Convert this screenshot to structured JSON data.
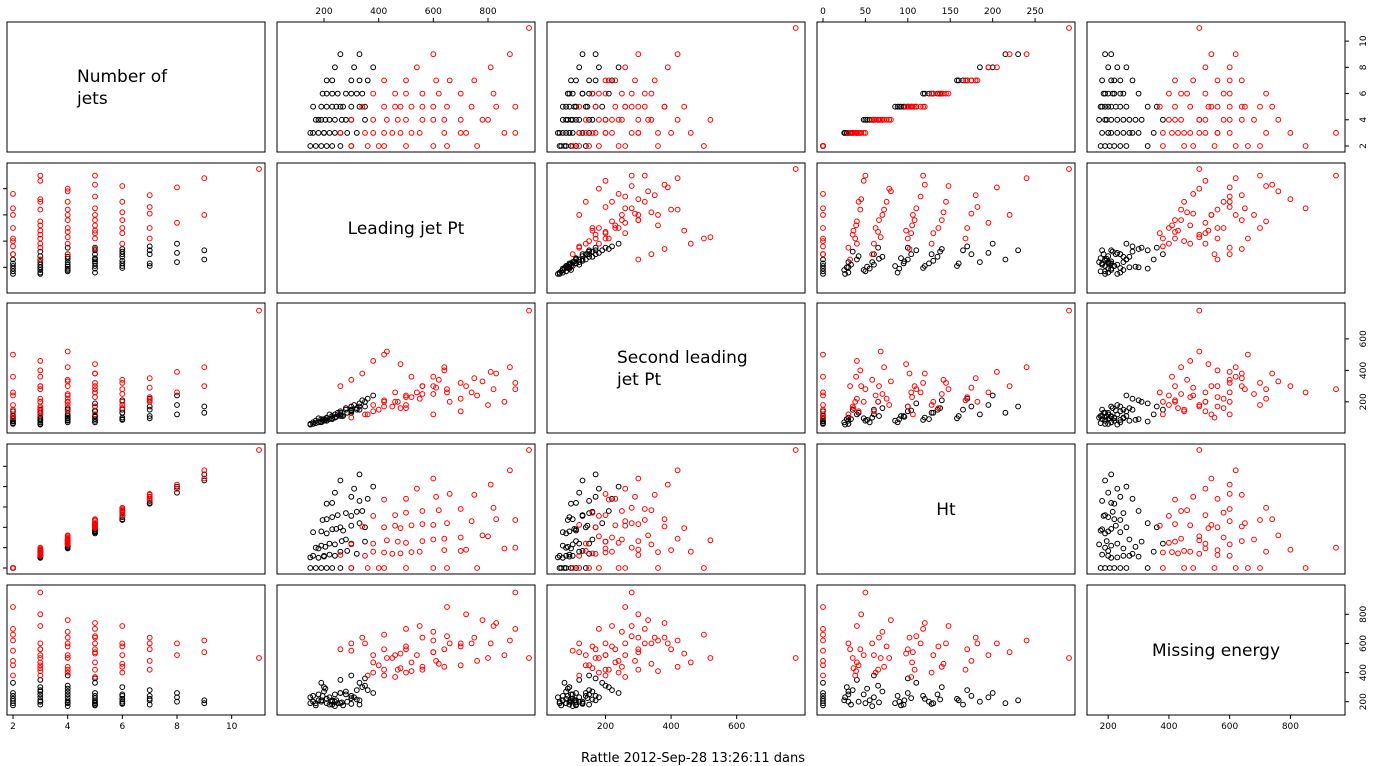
{
  "caption": "Rattle 2012-Sep-28 13:26:11 dans",
  "colors": {
    "class_a": "#000000",
    "class_b": "#ff0000",
    "panel_border": "#000000"
  },
  "chart_data": {
    "type": "scatter",
    "kind": "scatter-matrix",
    "variables": [
      {
        "key": "njets",
        "label_lines": [
          "Number of",
          "jets"
        ],
        "range": [
          2,
          11
        ],
        "ticks": [
          2,
          4,
          6,
          8,
          10
        ]
      },
      {
        "key": "lead",
        "label_lines": [
          "Leading jet Pt"
        ],
        "range": [
          50,
          950
        ],
        "ticks": [
          200,
          400,
          600,
          800
        ]
      },
      {
        "key": "second",
        "label_lines": [
          "Second leading",
          "jet Pt"
        ],
        "range": [
          40,
          790
        ],
        "ticks": [
          200,
          400,
          600,
          800
        ]
      },
      {
        "key": "ht",
        "label_lines": [
          "Ht"
        ],
        "range": [
          0,
          290
        ],
        "ticks": [
          0,
          50,
          100,
          150,
          200,
          250,
          300
        ]
      },
      {
        "key": "met",
        "label_lines": [
          "Missing energy"
        ],
        "range": [
          150,
          960
        ],
        "ticks": [
          200,
          400,
          600,
          800
        ]
      }
    ],
    "series": [
      {
        "color": "#000000",
        "points": [
          [
            2,
            150,
            60,
            0,
            190
          ],
          [
            2,
            210,
            80,
            0,
            220
          ],
          [
            2,
            260,
            110,
            0,
            260
          ],
          [
            2,
            300,
            140,
            0,
            240
          ],
          [
            3,
            180,
            70,
            25,
            210
          ],
          [
            3,
            240,
            100,
            30,
            250
          ],
          [
            3,
            320,
            150,
            35,
            280
          ],
          [
            3,
            200,
            90,
            28,
            300
          ],
          [
            4,
            170,
            80,
            50,
            190
          ],
          [
            4,
            220,
            120,
            60,
            230
          ],
          [
            4,
            280,
            160,
            70,
            270
          ],
          [
            4,
            350,
            200,
            65,
            310
          ],
          [
            5,
            190,
            90,
            90,
            200
          ],
          [
            5,
            260,
            140,
            100,
            260
          ],
          [
            5,
            330,
            190,
            110,
            330
          ],
          [
            5,
            230,
            110,
            95,
            180
          ],
          [
            6,
            210,
            100,
            120,
            220
          ],
          [
            6,
            280,
            150,
            135,
            250
          ],
          [
            6,
            340,
            210,
            140,
            300
          ],
          [
            6,
            250,
            130,
            130,
            190
          ],
          [
            7,
            230,
            110,
            160,
            210
          ],
          [
            7,
            300,
            170,
            175,
            240
          ],
          [
            7,
            360,
            220,
            170,
            280
          ],
          [
            8,
            240,
            120,
            185,
            200
          ],
          [
            8,
            310,
            180,
            195,
            230
          ],
          [
            8,
            380,
            240,
            200,
            260
          ],
          [
            9,
            260,
            130,
            215,
            190
          ],
          [
            9,
            330,
            170,
            230,
            210
          ],
          [
            3,
            160,
            60,
            30,
            200
          ],
          [
            4,
            190,
            70,
            55,
            210
          ],
          [
            5,
            210,
            80,
            85,
            190
          ],
          [
            6,
            230,
            90,
            125,
            200
          ],
          [
            3,
            260,
            120,
            40,
            350
          ],
          [
            4,
            300,
            150,
            60,
            380
          ],
          [
            5,
            350,
            170,
            100,
            360
          ],
          [
            2,
            190,
            75,
            0,
            330
          ],
          [
            3,
            220,
            90,
            33,
            180
          ],
          [
            4,
            240,
            100,
            58,
            170
          ],
          [
            5,
            270,
            110,
            92,
            175
          ],
          [
            6,
            300,
            130,
            128,
            185
          ],
          [
            7,
            330,
            150,
            165,
            180
          ],
          [
            2,
            170,
            65,
            0,
            175
          ],
          [
            3,
            200,
            80,
            30,
            270
          ],
          [
            4,
            180,
            95,
            48,
            250
          ],
          [
            5,
            160,
            70,
            88,
            240
          ],
          [
            3,
            150,
            55,
            26,
            230
          ],
          [
            4,
            205,
            85,
            52,
            290
          ],
          [
            5,
            245,
            105,
            96,
            210
          ],
          [
            6,
            195,
            85,
            118,
            240
          ],
          [
            7,
            210,
            95,
            158,
            220
          ],
          [
            3,
            285,
            130,
            42,
            200
          ],
          [
            4,
            265,
            110,
            66,
            195
          ],
          [
            2,
            230,
            95,
            0,
            205
          ],
          [
            5,
            300,
            145,
            104,
            225
          ],
          [
            6,
            320,
            160,
            138,
            215
          ]
        ]
      },
      {
        "color": "#ff0000",
        "points": [
          [
            2,
            300,
            100,
            0,
            550
          ],
          [
            2,
            500,
            180,
            0,
            700
          ],
          [
            2,
            650,
            260,
            0,
            850
          ],
          [
            2,
            400,
            150,
            0,
            450
          ],
          [
            3,
            350,
            120,
            30,
            600
          ],
          [
            3,
            550,
            220,
            40,
            720
          ],
          [
            3,
            720,
            300,
            45,
            800
          ],
          [
            3,
            450,
            170,
            35,
            500
          ],
          [
            3,
            900,
            280,
            50,
            950
          ],
          [
            4,
            380,
            140,
            60,
            520
          ],
          [
            4,
            600,
            250,
            70,
            680
          ],
          [
            4,
            780,
            330,
            80,
            760
          ],
          [
            4,
            470,
            200,
            65,
            420
          ],
          [
            5,
            420,
            170,
            100,
            560
          ],
          [
            5,
            650,
            280,
            110,
            650
          ],
          [
            5,
            830,
            380,
            120,
            740
          ],
          [
            5,
            520,
            230,
            105,
            470
          ],
          [
            6,
            460,
            200,
            130,
            520
          ],
          [
            6,
            700,
            320,
            145,
            600
          ],
          [
            6,
            560,
            250,
            140,
            440
          ],
          [
            7,
            500,
            230,
            170,
            560
          ],
          [
            7,
            750,
            350,
            180,
            640
          ],
          [
            7,
            610,
            290,
            175,
            480
          ],
          [
            8,
            540,
            260,
            195,
            520
          ],
          [
            8,
            810,
            390,
            205,
            600
          ],
          [
            9,
            600,
            300,
            220,
            540
          ],
          [
            9,
            880,
            420,
            240,
            620
          ],
          [
            11,
            950,
            780,
            290,
            500
          ],
          [
            3,
            420,
            200,
            38,
            380
          ],
          [
            4,
            500,
            240,
            62,
            400
          ],
          [
            5,
            560,
            300,
            108,
            420
          ],
          [
            6,
            620,
            340,
            142,
            460
          ],
          [
            2,
            360,
            120,
            0,
            380
          ],
          [
            3,
            480,
            160,
            36,
            430
          ],
          [
            4,
            700,
            220,
            75,
            580
          ],
          [
            5,
            740,
            260,
            115,
            600
          ],
          [
            6,
            380,
            180,
            128,
            400
          ],
          [
            7,
            420,
            210,
            168,
            420
          ],
          [
            3,
            380,
            460,
            40,
            470
          ],
          [
            4,
            430,
            520,
            68,
            500
          ],
          [
            5,
            480,
            440,
            98,
            530
          ],
          [
            2,
            600,
            360,
            0,
            620
          ],
          [
            3,
            640,
            400,
            44,
            560
          ],
          [
            4,
            560,
            300,
            66,
            640
          ],
          [
            5,
            900,
            320,
            118,
            700
          ],
          [
            6,
            820,
            280,
            148,
            720
          ],
          [
            3,
            260,
            300,
            32,
            560
          ],
          [
            4,
            300,
            340,
            58,
            600
          ],
          [
            5,
            340,
            380,
            102,
            640
          ],
          [
            2,
            420,
            500,
            0,
            660
          ],
          [
            3,
            700,
            140,
            42,
            450
          ],
          [
            4,
            800,
            180,
            78,
            500
          ],
          [
            5,
            600,
            120,
            106,
            540
          ],
          [
            6,
            500,
            160,
            136,
            580
          ],
          [
            7,
            660,
            200,
            182,
            600
          ],
          [
            3,
            520,
            360,
            39,
            410
          ],
          [
            4,
            640,
            420,
            72,
            440
          ],
          [
            2,
            760,
            240,
            0,
            480
          ],
          [
            3,
            860,
            200,
            48,
            520
          ],
          [
            5,
            460,
            260,
            104,
            370
          ]
        ]
      }
    ],
    "title": "",
    "grid": false
  }
}
